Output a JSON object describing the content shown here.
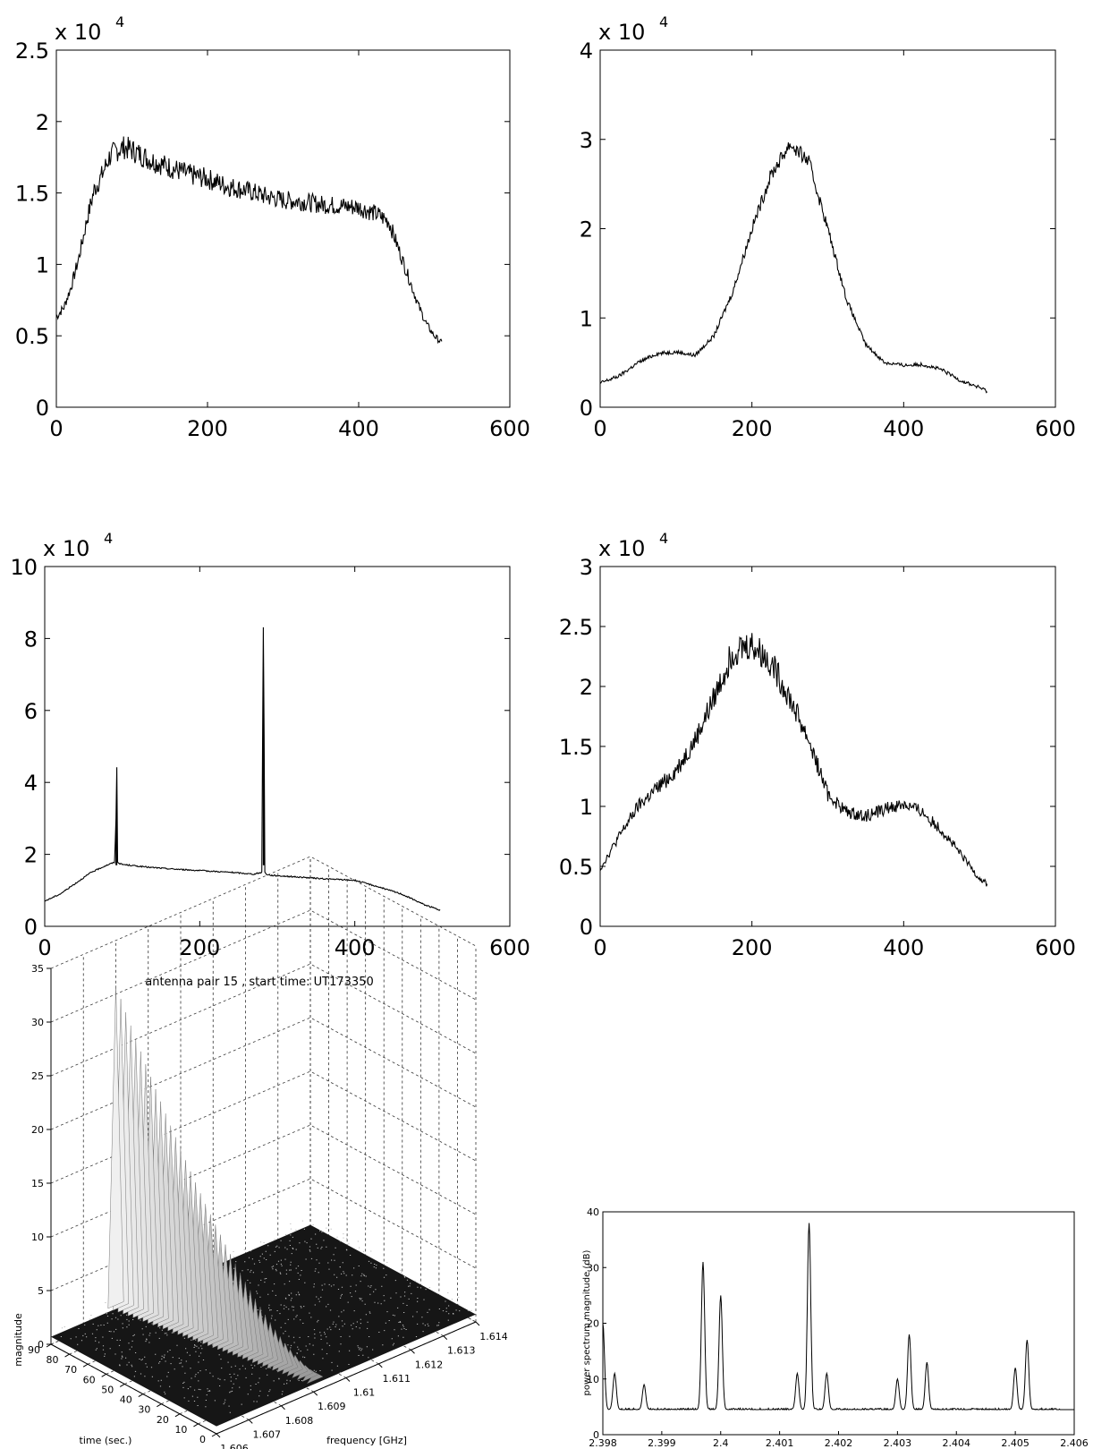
{
  "chart_data": [
    {
      "type": "line",
      "exponent_label": "x 10",
      "exponent_power": "4",
      "xlim": [
        0,
        600
      ],
      "ylim": [
        0,
        2.5
      ],
      "xticks": [
        "0",
        "200",
        "400",
        "600"
      ],
      "yticks": [
        "0",
        "0.5",
        "1",
        "1.5",
        "2",
        "2.5"
      ],
      "xtick_values": [
        0,
        200,
        400,
        600
      ],
      "ytick_values": [
        0,
        0.5,
        1,
        1.5,
        2,
        2.5
      ],
      "series": [
        {
          "x": [
            0,
            10,
            20,
            30,
            40,
            50,
            60,
            70,
            80,
            90,
            100,
            125,
            150,
            175,
            200,
            225,
            250,
            275,
            300,
            325,
            350,
            375,
            400,
            425,
            440,
            450,
            460,
            470,
            480,
            490,
            500,
            510
          ],
          "y": [
            0.63,
            0.7,
            0.85,
            1.05,
            1.3,
            1.52,
            1.62,
            1.75,
            1.8,
            1.82,
            1.8,
            1.73,
            1.68,
            1.63,
            1.6,
            1.55,
            1.52,
            1.48,
            1.45,
            1.44,
            1.42,
            1.41,
            1.4,
            1.35,
            1.3,
            1.15,
            1.0,
            0.85,
            0.7,
            0.58,
            0.5,
            0.45
          ]
        }
      ],
      "grid": false
    },
    {
      "type": "line",
      "exponent_label": "x 10",
      "exponent_power": "4",
      "xlim": [
        0,
        600
      ],
      "ylim": [
        0,
        4
      ],
      "xticks": [
        "0",
        "200",
        "400",
        "600"
      ],
      "yticks": [
        "0",
        "1",
        "2",
        "3",
        "4"
      ],
      "xtick_values": [
        0,
        200,
        400,
        600
      ],
      "ytick_values": [
        0,
        1,
        2,
        3,
        4
      ],
      "series": [
        {
          "x": [
            0,
            25,
            50,
            75,
            100,
            125,
            150,
            175,
            200,
            225,
            250,
            275,
            300,
            325,
            350,
            375,
            400,
            425,
            450,
            475,
            500,
            510
          ],
          "y": [
            0.27,
            0.35,
            0.5,
            0.6,
            0.62,
            0.58,
            0.8,
            1.3,
            2.0,
            2.6,
            2.95,
            2.75,
            2.0,
            1.2,
            0.7,
            0.5,
            0.47,
            0.48,
            0.42,
            0.3,
            0.22,
            0.18
          ]
        }
      ],
      "grid": false
    },
    {
      "type": "line",
      "exponent_label": "x 10",
      "exponent_power": "4",
      "xlim": [
        0,
        600
      ],
      "ylim": [
        0,
        10
      ],
      "xticks": [
        "0",
        "200",
        "400",
        "600"
      ],
      "yticks": [
        "0",
        "2",
        "4",
        "6",
        "8",
        "10"
      ],
      "xtick_values": [
        0,
        200,
        400,
        600
      ],
      "ytick_values": [
        0,
        2,
        4,
        6,
        8,
        10
      ],
      "series": [
        {
          "x": [
            0,
            20,
            40,
            60,
            80,
            90,
            92,
            93,
            94,
            96,
            100,
            130,
            160,
            200,
            240,
            270,
            280,
            282,
            283,
            284,
            286,
            290,
            320,
            360,
            400,
            430,
            460,
            490,
            510
          ],
          "y": [
            0.7,
            0.9,
            1.2,
            1.5,
            1.7,
            1.78,
            3.0,
            4.4,
            1.8,
            1.75,
            1.72,
            1.65,
            1.6,
            1.55,
            1.5,
            1.45,
            1.5,
            8.3,
            5.3,
            1.5,
            1.45,
            1.42,
            1.38,
            1.32,
            1.28,
            1.1,
            0.9,
            0.6,
            0.45
          ]
        }
      ],
      "grid": false
    },
    {
      "type": "line",
      "exponent_label": "x 10",
      "exponent_power": "4",
      "xlim": [
        0,
        600
      ],
      "ylim": [
        0,
        3
      ],
      "xticks": [
        "0",
        "200",
        "400",
        "600"
      ],
      "yticks": [
        "0",
        "0.5",
        "1",
        "1.5",
        "2",
        "2.5",
        "3"
      ],
      "xtick_values": [
        0,
        200,
        400,
        600
      ],
      "ytick_values": [
        0,
        0.5,
        1,
        1.5,
        2,
        2.5,
        3
      ],
      "series": [
        {
          "x": [
            0,
            25,
            50,
            75,
            100,
            125,
            150,
            175,
            200,
            225,
            250,
            275,
            300,
            325,
            350,
            375,
            400,
            425,
            450,
            475,
            500,
            510
          ],
          "y": [
            0.48,
            0.75,
            1.0,
            1.15,
            1.3,
            1.55,
            1.9,
            2.3,
            2.35,
            2.2,
            1.9,
            1.55,
            1.1,
            0.95,
            0.92,
            0.98,
            1.02,
            0.95,
            0.8,
            0.6,
            0.4,
            0.35
          ]
        }
      ],
      "grid": false
    },
    {
      "type": "surface",
      "title": "antenna pair 15 , start time: UT173350",
      "xlabel": "frequency [GHz]",
      "ylabel": "time (sec.)",
      "zlabel": "magnitude",
      "xticks": [
        "1.606",
        "1.607",
        "1.608",
        "1.609",
        "1.61",
        "1.611",
        "1.612",
        "1.613",
        "1.614"
      ],
      "yticks": [
        "0",
        "10",
        "20",
        "30",
        "40",
        "50",
        "60",
        "70",
        "80",
        "90"
      ],
      "zticks": [
        "0",
        "5",
        "10",
        "15",
        "20",
        "25",
        "30",
        "35"
      ],
      "xtick_values": [
        1.606,
        1.607,
        1.608,
        1.609,
        1.61,
        1.611,
        1.612,
        1.613,
        1.614
      ],
      "ytick_values": [
        0,
        10,
        20,
        30,
        40,
        50,
        60,
        70,
        80,
        90
      ],
      "ztick_values": [
        0,
        5,
        10,
        15,
        20,
        25,
        30,
        35
      ],
      "xlim": [
        1.606,
        1.614
      ],
      "ylim": [
        0,
        90
      ],
      "zlim": [
        0,
        35
      ],
      "grid": true
    },
    {
      "type": "line",
      "xlabel": "",
      "ylabel": "power spectrum magnitude (dB)",
      "xlim": [
        2.398,
        2.406
      ],
      "ylim": [
        0,
        40
      ],
      "xticks": [
        "2.398",
        "2.399",
        "2.4",
        "2.401",
        "2.402",
        "2.403",
        "2.404",
        "2.405",
        "2.406"
      ],
      "yticks": [
        "0",
        "10",
        "20",
        "30",
        "40"
      ],
      "xtick_values": [
        2.398,
        2.399,
        2.4,
        2.401,
        2.402,
        2.403,
        2.404,
        2.405,
        2.406
      ],
      "ytick_values": [
        0,
        10,
        20,
        30,
        40
      ],
      "baseline": 4.5,
      "peaks": [
        {
          "x": 2.398,
          "y": 20
        },
        {
          "x": 2.3982,
          "y": 11
        },
        {
          "x": 2.3987,
          "y": 9
        },
        {
          "x": 2.3997,
          "y": 31
        },
        {
          "x": 2.4,
          "y": 25
        },
        {
          "x": 2.4013,
          "y": 11
        },
        {
          "x": 2.4015,
          "y": 38
        },
        {
          "x": 2.4018,
          "y": 11
        },
        {
          "x": 2.403,
          "y": 10
        },
        {
          "x": 2.4032,
          "y": 18
        },
        {
          "x": 2.4035,
          "y": 13
        },
        {
          "x": 2.405,
          "y": 12
        },
        {
          "x": 2.4052,
          "y": 17
        }
      ],
      "grid": false
    }
  ]
}
